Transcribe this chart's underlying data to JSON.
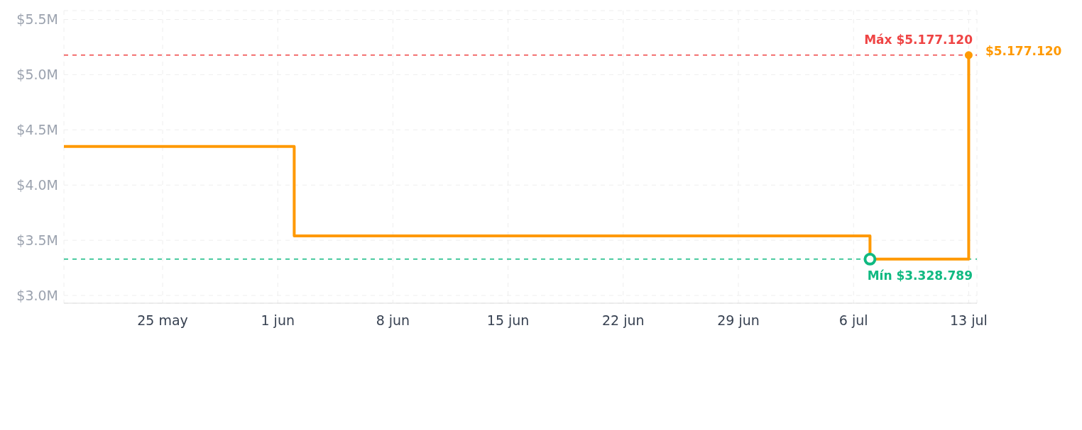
{
  "chart_data": {
    "type": "step",
    "x": [
      "--05-19",
      "--06-02",
      "--07-07",
      "--07-13"
    ],
    "series": [
      {
        "type": "step",
        "color": "#ff9900",
        "values": [
          4350000,
          3540000,
          3328789,
          5177120
        ],
        "marker": "none"
      },
      {
        "type": "scatter",
        "color": "#10b981",
        "x": [
          "--07-07"
        ],
        "values": [
          3328789
        ],
        "marker": "circle"
      },
      {
        "type": "scatter",
        "color": "#ff9900",
        "x": [
          "--07-13"
        ],
        "values": [
          5177120
        ],
        "marker": "circle",
        "value_labels": [
          "$5.177.120"
        ]
      }
    ],
    "xlim": [
      "--05-19",
      "--07-13T12:00"
    ],
    "xticks": [
      {
        "value": "--05-25",
        "label": "25 may"
      },
      {
        "value": "--06-01",
        "label": "1 jun"
      },
      {
        "value": "--06-08",
        "label": "8 jun"
      },
      {
        "value": "--06-15",
        "label": "15 jun"
      },
      {
        "value": "--06-22",
        "label": "22 jun"
      },
      {
        "value": "--06-29",
        "label": "29 jun"
      },
      {
        "value": "--07-06",
        "label": "6 jul"
      },
      {
        "value": "--07-13",
        "label": "13 jul"
      }
    ],
    "ylim": [
      2930000,
      5580000
    ],
    "yticks": [
      {
        "value": 3000000,
        "label": "$3.0M"
      },
      {
        "value": 3500000,
        "label": "$3.5M"
      },
      {
        "value": 4000000,
        "label": "$4.0M"
      },
      {
        "value": 4500000,
        "label": "$4.5M"
      },
      {
        "value": 5000000,
        "label": "$5.0M"
      },
      {
        "value": 5500000,
        "label": "$5.5M"
      }
    ],
    "ref_lines": [
      {
        "axis": "y",
        "value": 5177120,
        "label": "Máx $5.177.120",
        "color": "#ef4444",
        "line_style": "dashed"
      },
      {
        "axis": "y",
        "value": 3328789,
        "label": "Mín $3.328.789",
        "color": "#10b981",
        "line_style": "dashed"
      }
    ],
    "grid": true,
    "legend": false
  }
}
